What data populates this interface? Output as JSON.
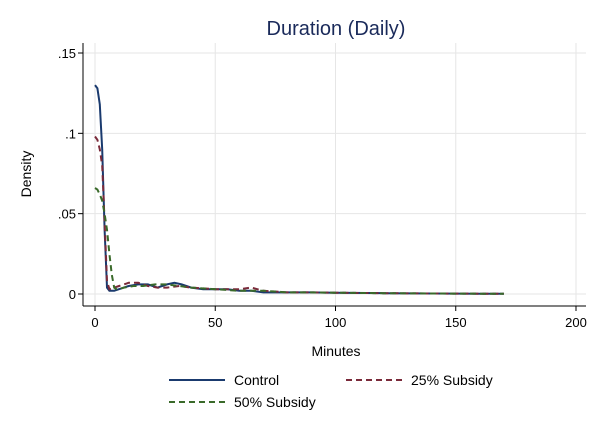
{
  "chart_data": {
    "type": "line",
    "title": "Duration (Daily)",
    "xlabel": "Minutes",
    "ylabel": "Density",
    "xlim": [
      0,
      200
    ],
    "ylim": [
      0,
      0.15
    ],
    "xticks": [
      0,
      50,
      100,
      150,
      200
    ],
    "xtick_labels": [
      "0",
      "50",
      "100",
      "150",
      "200"
    ],
    "yticks": [
      0,
      0.05,
      0.1,
      0.15
    ],
    "ytick_labels": [
      "0",
      ".05",
      ".1",
      ".15"
    ],
    "grid": true,
    "legend_position": "bottom",
    "series": [
      {
        "name": "Control",
        "color": "#1a3a6e",
        "dash": "solid",
        "x": [
          0,
          1,
          2,
          3,
          4,
          5,
          6,
          8,
          10,
          14,
          18,
          22,
          26,
          30,
          33,
          36,
          40,
          45,
          50,
          55,
          60,
          65,
          70,
          80,
          90,
          100,
          120,
          140,
          160,
          170
        ],
        "y": [
          0.13,
          0.128,
          0.118,
          0.09,
          0.04,
          0.004,
          0.002,
          0.002,
          0.003,
          0.005,
          0.006,
          0.006,
          0.004,
          0.006,
          0.007,
          0.006,
          0.004,
          0.003,
          0.003,
          0.003,
          0.002,
          0.002,
          0.001,
          0.001,
          0.001,
          0.0008,
          0.0005,
          0.0003,
          0.0002,
          0.0002
        ]
      },
      {
        "name": "25% Subsidy",
        "color": "#7a2a3a",
        "dash": "dashed",
        "x": [
          0,
          1,
          2,
          3,
          4,
          5,
          6,
          8,
          10,
          14,
          18,
          22,
          26,
          30,
          35,
          40,
          50,
          60,
          65,
          70,
          80,
          90,
          100,
          120,
          140,
          160,
          170
        ],
        "y": [
          0.098,
          0.096,
          0.09,
          0.08,
          0.045,
          0.008,
          0.003,
          0.004,
          0.005,
          0.007,
          0.007,
          0.005,
          0.004,
          0.004,
          0.005,
          0.004,
          0.003,
          0.003,
          0.004,
          0.002,
          0.001,
          0.001,
          0.0008,
          0.0005,
          0.0003,
          0.0002,
          0.0002
        ]
      },
      {
        "name": "50% Subsidy",
        "color": "#3a6a2a",
        "dash": "dashed",
        "x": [
          0,
          1,
          2,
          3,
          4,
          5,
          6,
          7,
          8,
          9,
          10,
          12,
          16,
          20,
          25,
          30,
          35,
          40,
          50,
          60,
          70,
          80,
          90,
          100,
          120,
          140,
          160,
          170
        ],
        "y": [
          0.066,
          0.065,
          0.062,
          0.058,
          0.05,
          0.04,
          0.025,
          0.012,
          0.004,
          0.003,
          0.003,
          0.004,
          0.005,
          0.005,
          0.006,
          0.006,
          0.005,
          0.004,
          0.003,
          0.002,
          0.002,
          0.001,
          0.001,
          0.0008,
          0.0005,
          0.0003,
          0.0002,
          0.0002
        ]
      }
    ]
  }
}
